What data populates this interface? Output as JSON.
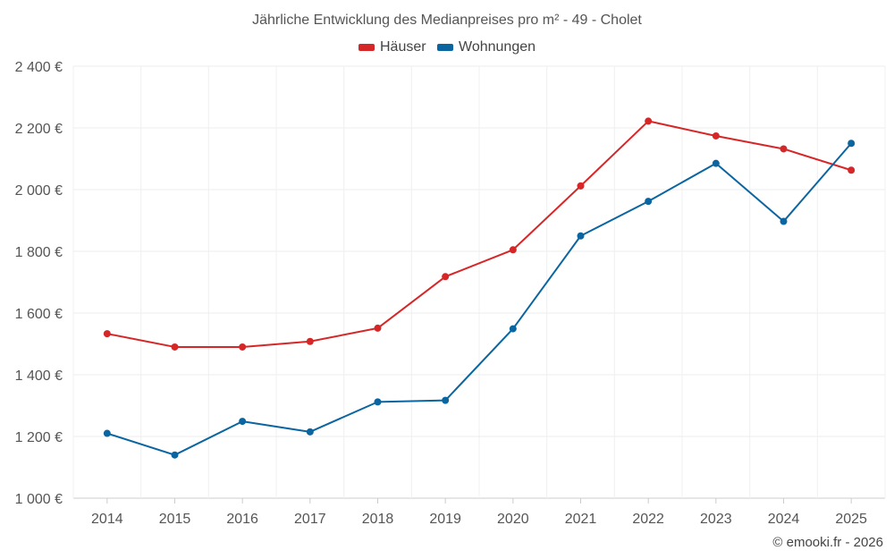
{
  "chart_data": {
    "type": "line",
    "title": "Jährliche Entwicklung des Medianpreises pro m² - 49 - Cholet",
    "categories": [
      "2014",
      "2015",
      "2016",
      "2017",
      "2018",
      "2019",
      "2020",
      "2021",
      "2022",
      "2023",
      "2024",
      "2025"
    ],
    "series": [
      {
        "name": "Häuser",
        "color": "#d62728",
        "values": [
          1533,
          1490,
          1490,
          1508,
          1551,
          1718,
          1805,
          2012,
          2222,
          2174,
          2132,
          2063
        ]
      },
      {
        "name": "Wohnungen",
        "color": "#0a65a0",
        "values": [
          1210,
          1140,
          1249,
          1215,
          1312,
          1317,
          1549,
          1850,
          1962,
          2085,
          1897,
          2150
        ]
      }
    ],
    "y_ticks": [
      1000,
      1200,
      1400,
      1600,
      1800,
      2000,
      2200,
      2400
    ],
    "y_tick_labels": [
      "1 000 €",
      "1 200 €",
      "1 400 €",
      "1 600 €",
      "1 800 €",
      "2 000 €",
      "2 200 €",
      "2 400 €"
    ],
    "ylim": [
      1000,
      2400
    ],
    "grid": true,
    "legend_position": "top-center"
  },
  "credit": "© emooki.fr - 2026"
}
